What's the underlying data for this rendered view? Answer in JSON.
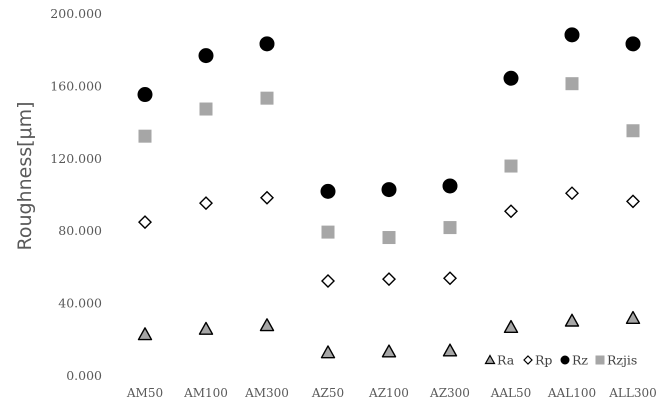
{
  "chart_data": {
    "type": "scatter",
    "title": "",
    "xlabel": "",
    "ylabel": "Roughness[μm]",
    "ylim": [
      0,
      200
    ],
    "yticks": [
      "0.000",
      "40.000",
      "80.000",
      "120.000",
      "160.000",
      "200.000"
    ],
    "ytick_values": [
      0,
      40,
      80,
      120,
      160,
      200
    ],
    "grid": false,
    "legend_position": "bottom-right",
    "categories": [
      "AM50",
      "AM100",
      "AM300",
      "AZ50",
      "AZ100",
      "AZ300",
      "AAL50",
      "AAL100",
      "ALL300"
    ],
    "series": [
      {
        "name": "Ra",
        "marker": "triangle",
        "color": "#a6a6a6",
        "stroke": "#000000",
        "values": [
          23,
          26,
          28,
          13,
          13.5,
          14,
          27,
          30.5,
          32
        ]
      },
      {
        "name": "Rp",
        "marker": "diamond",
        "color": "#ffffff",
        "stroke": "#000000",
        "values": [
          85,
          95.5,
          98.5,
          52.5,
          53.5,
          54,
          91,
          101,
          96.5
        ]
      },
      {
        "name": "Rz",
        "marker": "circle",
        "color": "#000000",
        "stroke": "#000000",
        "values": [
          155.5,
          177,
          183.5,
          102,
          103,
          105,
          164.5,
          188.5,
          183.5
        ]
      },
      {
        "name": "Rzjis",
        "marker": "square",
        "color": "#a6a6a6",
        "stroke": "#a6a6a6",
        "values": [
          132.5,
          147.5,
          153.5,
          79.5,
          76.5,
          82,
          116,
          161.5,
          135.5
        ]
      }
    ]
  }
}
